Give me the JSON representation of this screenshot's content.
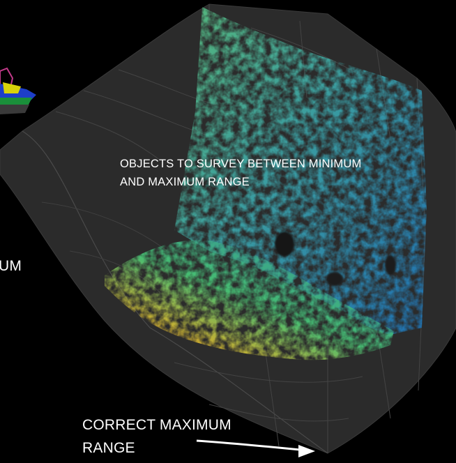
{
  "captions": {
    "objects_line1": "OBJECTS TO SURVEY BETWEEN MINIMUM",
    "objects_line2": "AND MAXIMUM RANGE",
    "left_partial": "UM",
    "max_line1": "CORRECT MAXIMUM",
    "max_line2": "RANGE"
  },
  "colors": {
    "background": "#000000",
    "grid_surface": "#2e2e2e",
    "grid_line": "#4a4a4a",
    "text": "#ffffff",
    "sonar_near": "#e0521c",
    "sonar_mid": "#3fbf7a",
    "sonar_far": "#1f6fb0",
    "vessel_yellow": "#d8d20a",
    "vessel_blue": "#1d3ec9",
    "vessel_green": "#1a8f3a"
  }
}
